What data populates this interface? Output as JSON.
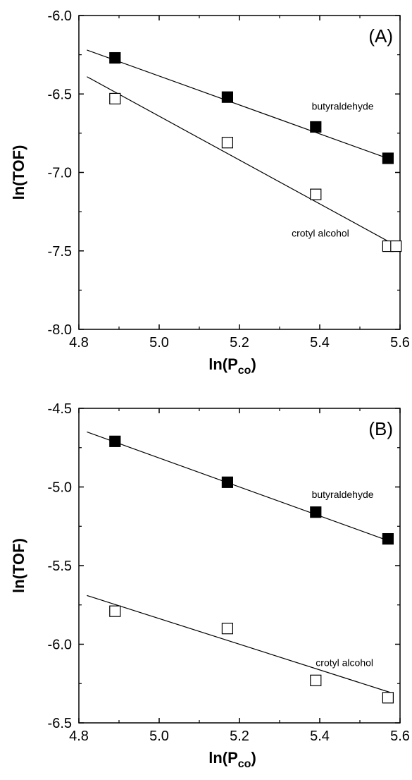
{
  "chart_data": [
    {
      "type": "scatter",
      "panel_label": "(A)",
      "xlabel": "ln(P",
      "xlabel_sub": "co",
      "xlabel_close": ")",
      "ylabel": "ln(TOF)",
      "xlim": [
        4.8,
        5.6
      ],
      "ylim": [
        -8.0,
        -6.0
      ],
      "xticks": [
        "4.8",
        "5.0",
        "5.2",
        "5.4",
        "5.6"
      ],
      "yticks": [
        "-6.0",
        "-6.5",
        "-7.0",
        "-7.5",
        "-8.0"
      ],
      "series": [
        {
          "name": "butyraldehyde",
          "marker": "filled-square",
          "x": [
            4.89,
            5.17,
            5.39,
            5.57
          ],
          "y": [
            -6.27,
            -6.52,
            -6.71,
            -6.91
          ],
          "fit": {
            "x": [
              4.82,
              5.58
            ],
            "y": [
              -6.22,
              -6.92
            ]
          },
          "label_at": [
            5.38,
            -6.6
          ]
        },
        {
          "name": "crotyl alcohol",
          "marker": "open-square",
          "x": [
            4.89,
            5.17,
            5.39,
            5.57,
            5.59
          ],
          "y": [
            -6.53,
            -6.81,
            -7.14,
            -7.47,
            -7.47
          ],
          "fit": {
            "x": [
              4.82,
              5.6
            ],
            "y": [
              -6.39,
              -7.48
            ]
          },
          "label_at": [
            5.33,
            -7.41
          ]
        }
      ]
    },
    {
      "type": "scatter",
      "panel_label": "(B)",
      "xlabel": "ln(P",
      "xlabel_sub": "co",
      "xlabel_close": ")",
      "ylabel": "ln(TOF)",
      "xlim": [
        4.8,
        5.6
      ],
      "ylim": [
        -6.5,
        -4.5
      ],
      "xticks": [
        "4.8",
        "5.0",
        "5.2",
        "5.4",
        "5.6"
      ],
      "yticks": [
        "-4.5",
        "-5.0",
        "-5.5",
        "-6.0",
        "-6.5"
      ],
      "series": [
        {
          "name": "butyraldehyde",
          "marker": "filled-square",
          "x": [
            4.89,
            5.17,
            5.39,
            5.57
          ],
          "y": [
            -4.71,
            -4.97,
            -5.16,
            -5.33
          ],
          "fit": {
            "x": [
              4.82,
              5.58
            ],
            "y": [
              -4.65,
              -5.35
            ]
          },
          "label_at": [
            5.38,
            -5.07
          ]
        },
        {
          "name": "crotyl alcohol",
          "marker": "open-square",
          "x": [
            4.89,
            5.17,
            5.39,
            5.57
          ],
          "y": [
            -5.79,
            -5.9,
            -6.23,
            -6.34
          ],
          "fit": {
            "x": [
              4.82,
              5.58
            ],
            "y": [
              -5.69,
              -6.31
            ]
          },
          "label_at": [
            5.39,
            -6.14
          ]
        }
      ]
    }
  ]
}
